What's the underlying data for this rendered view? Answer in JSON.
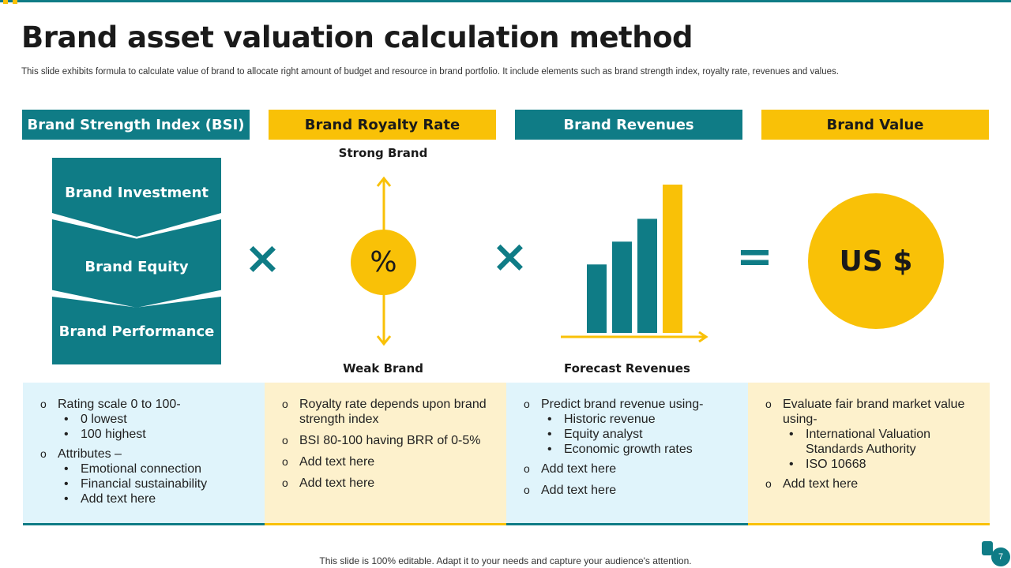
{
  "title": "Brand asset valuation calculation method",
  "subtitle": "This slide exhibits formula to calculate value of brand to allocate right amount of budget and resource in brand portfolio. It include elements such as brand strength index, royalty rate, revenues and values.",
  "colors": {
    "teal": "#0f7c86",
    "yellow": "#f9c107",
    "light_blue": "#e0f4fb",
    "light_yellow": "#fdf1cc"
  },
  "headers": [
    "Brand Strength Index (BSI)",
    "Brand Royalty Rate",
    "Brand Revenues",
    "Brand Value"
  ],
  "bsi_steps": [
    "Brand Investment",
    "Brand Equity",
    "Brand Performance"
  ],
  "operators": {
    "multiply": "×",
    "equals": "="
  },
  "royalty": {
    "top_label": "Strong Brand",
    "bottom_label": "Weak Brand",
    "symbol": "%"
  },
  "revenues": {
    "label": "Forecast Revenues",
    "bars": [
      3,
      4,
      5,
      6.5
    ]
  },
  "value": {
    "symbol": "US $"
  },
  "panels": [
    {
      "items": [
        {
          "text": "Rating scale 0 to 100-",
          "sub": [
            "0 lowest",
            "100 highest"
          ]
        },
        {
          "text": "Attributes –",
          "sub": [
            "Emotional connection",
            "Financial sustainability",
            "Add text here"
          ]
        }
      ]
    },
    {
      "items": [
        {
          "text": "Royalty rate depends upon brand strength index",
          "sub": []
        },
        {
          "text": "BSI 80-100 having BRR of 0-5%",
          "sub": []
        },
        {
          "text": "Add text here",
          "sub": []
        },
        {
          "text": "Add text here",
          "sub": []
        }
      ]
    },
    {
      "items": [
        {
          "text": "Predict brand revenue using-",
          "sub": [
            "Historic revenue",
            "Equity analyst",
            "Economic growth rates"
          ]
        },
        {
          "text": "Add text here",
          "sub": []
        },
        {
          "text": "Add text here",
          "sub": []
        }
      ]
    },
    {
      "items": [
        {
          "text": "Evaluate fair brand market value using-",
          "sub": [
            "International  Valuation Standards Authority",
            "ISO 10668"
          ]
        },
        {
          "text": "Add text here",
          "sub": []
        }
      ]
    }
  ],
  "footer": "This slide is 100% editable. Adapt it to your needs and capture your audience's attention.",
  "page_number": "7"
}
